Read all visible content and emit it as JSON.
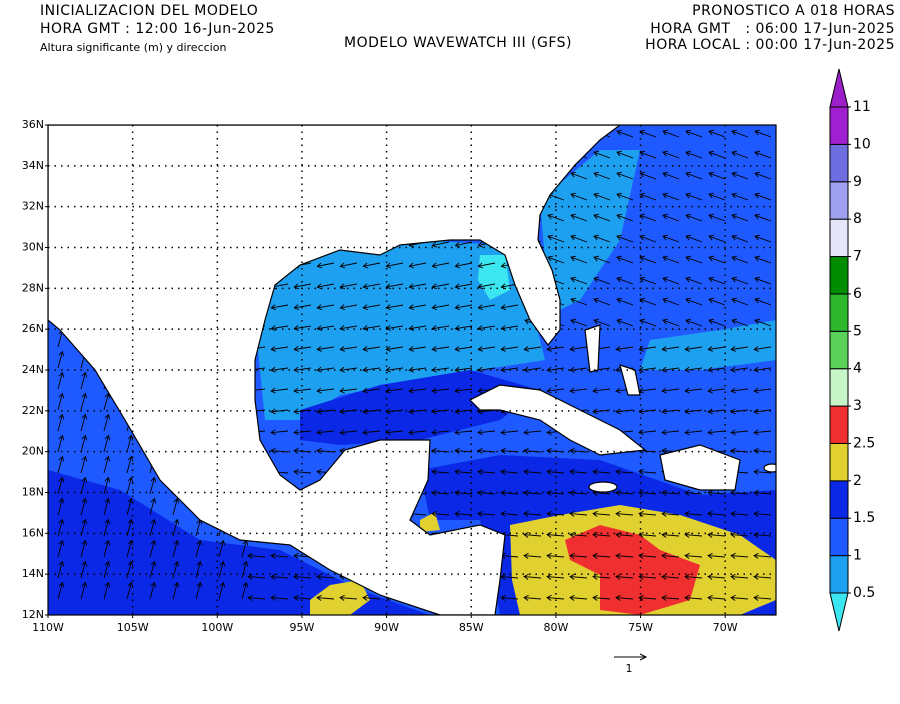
{
  "header": {
    "init_title": "INICIALIZACION DEL MODELO",
    "init_time": "HORA GMT : 12:00 16-Jun-2025",
    "variable": "Altura significante (m) y direccion",
    "model": "MODELO WAVEWATCH III (GFS)",
    "forecast": "PRONOSTICO A 018 HORAS",
    "valid_gmt": "HORA GMT   : 06:00 17-Jun-2025",
    "valid_local": "HORA LOCAL : 00:00 17-Jun-2025"
  },
  "map": {
    "lat_labels": [
      "36N",
      "34N",
      "32N",
      "30N",
      "28N",
      "26N",
      "24N",
      "22N",
      "20N",
      "18N",
      "16N",
      "14N",
      "12N"
    ],
    "lon_labels": [
      "110W",
      "105W",
      "100W",
      "95W",
      "90W",
      "85W",
      "80W",
      "75W",
      "70W"
    ],
    "arrow_scale_label": "1"
  },
  "colorbar": {
    "levels": [
      0.5,
      1,
      1.5,
      2,
      2.5,
      3,
      4,
      5,
      6,
      7,
      8,
      9,
      10,
      11
    ],
    "colors": [
      "#3ce6f0",
      "#1ea0f0",
      "#1e5aff",
      "#0a28e6",
      "#e0d030",
      "#f03030",
      "#c8f5c8",
      "#5ad25a",
      "#2db82d",
      "#008c00",
      "#e6e6fa",
      "#a0a0f0",
      "#6e6ee0",
      "#a01fd0",
      "#9d1fc9"
    ]
  }
}
